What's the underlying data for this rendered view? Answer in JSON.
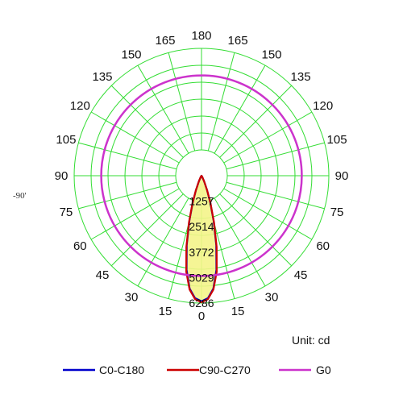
{
  "chart_data": {
    "type": "polar",
    "title": "",
    "unit_label": "Unit: cd",
    "side_label": "-90'",
    "angle_labels": [
      {
        "angle": 0,
        "text": "0"
      },
      {
        "angle": 15,
        "text": "15"
      },
      {
        "angle": 30,
        "text": "30"
      },
      {
        "angle": 45,
        "text": "45"
      },
      {
        "angle": 60,
        "text": "60"
      },
      {
        "angle": 75,
        "text": "75"
      },
      {
        "angle": 90,
        "text": "90"
      },
      {
        "angle": 105,
        "text": "105"
      },
      {
        "angle": 120,
        "text": "120"
      },
      {
        "angle": 135,
        "text": "135"
      },
      {
        "angle": 150,
        "text": "150"
      },
      {
        "angle": 165,
        "text": "165"
      },
      {
        "angle": 180,
        "text": "180"
      },
      {
        "angle": -15,
        "text": "15"
      },
      {
        "angle": -30,
        "text": "30"
      },
      {
        "angle": -45,
        "text": "45"
      },
      {
        "angle": -60,
        "text": "60"
      },
      {
        "angle": -75,
        "text": "75"
      },
      {
        "angle": -90,
        "text": "90"
      },
      {
        "angle": -105,
        "text": "105"
      },
      {
        "angle": -120,
        "text": "120"
      },
      {
        "angle": -135,
        "text": "135"
      },
      {
        "angle": -150,
        "text": "150"
      },
      {
        "angle": -165,
        "text": "165"
      }
    ],
    "rings": [
      {
        "value": 1257,
        "text": "1257"
      },
      {
        "value": 2514,
        "text": "2514"
      },
      {
        "value": 3772,
        "text": "3772"
      },
      {
        "value": 5029,
        "text": "5029"
      },
      {
        "value": 6286,
        "text": "6286"
      }
    ],
    "rlim": [
      0,
      6286
    ],
    "inner_ring": true,
    "grid": true,
    "legend_position": "bottom",
    "series": [
      {
        "name": "C0-C180",
        "color": "#0000cc",
        "points": [
          {
            "angle": 0,
            "value": 6200
          },
          {
            "angle": 3,
            "value": 6050
          },
          {
            "angle": 6,
            "value": 5600
          },
          {
            "angle": 9,
            "value": 4700
          },
          {
            "angle": 12,
            "value": 3500
          },
          {
            "angle": 15,
            "value": 2300
          },
          {
            "angle": 18,
            "value": 1400
          },
          {
            "angle": 21,
            "value": 750
          },
          {
            "angle": 25,
            "value": 300
          },
          {
            "angle": 30,
            "value": 90
          },
          {
            "angle": 40,
            "value": 20
          },
          {
            "angle": 90,
            "value": 0
          },
          {
            "angle": -40,
            "value": 20
          },
          {
            "angle": -30,
            "value": 90
          },
          {
            "angle": -25,
            "value": 300
          },
          {
            "angle": -21,
            "value": 750
          },
          {
            "angle": -18,
            "value": 1400
          },
          {
            "angle": -15,
            "value": 2300
          },
          {
            "angle": -12,
            "value": 3500
          },
          {
            "angle": -9,
            "value": 4700
          },
          {
            "angle": -6,
            "value": 5600
          },
          {
            "angle": -3,
            "value": 6050
          }
        ]
      },
      {
        "name": "C90-C270",
        "color": "#cc0000",
        "points": [
          {
            "angle": 0,
            "value": 6250
          },
          {
            "angle": 3,
            "value": 6100
          },
          {
            "angle": 6,
            "value": 5650
          },
          {
            "angle": 9,
            "value": 4800
          },
          {
            "angle": 12,
            "value": 3600
          },
          {
            "angle": 15,
            "value": 2400
          },
          {
            "angle": 18,
            "value": 1450
          },
          {
            "angle": 21,
            "value": 800
          },
          {
            "angle": 25,
            "value": 320
          },
          {
            "angle": 30,
            "value": 100
          },
          {
            "angle": 40,
            "value": 25
          },
          {
            "angle": 90,
            "value": 0
          },
          {
            "angle": -40,
            "value": 25
          },
          {
            "angle": -30,
            "value": 100
          },
          {
            "angle": -25,
            "value": 320
          },
          {
            "angle": -21,
            "value": 800
          },
          {
            "angle": -18,
            "value": 1450
          },
          {
            "angle": -15,
            "value": 2400
          },
          {
            "angle": -12,
            "value": 3600
          },
          {
            "angle": -9,
            "value": 4800
          },
          {
            "angle": -6,
            "value": 5650
          },
          {
            "angle": -3,
            "value": 6100
          }
        ]
      },
      {
        "name": "G0",
        "color": "#cc33cc",
        "constant_value": 4950
      }
    ],
    "fill_color": "#f4f48a",
    "grid_color": "#33dd33"
  }
}
